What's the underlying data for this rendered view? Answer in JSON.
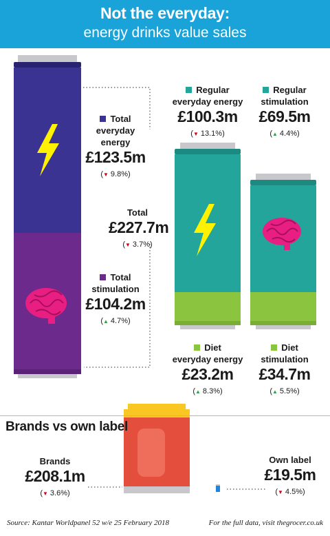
{
  "header": {
    "title": "Not the everyday:",
    "subtitle": "energy drinks value sales"
  },
  "colors": {
    "header_bg": "#1aa3d9",
    "everyday_can": "#3b3392",
    "stimulation_can": "#6b2a8c",
    "regular": "#23a59b",
    "diet": "#8bc53f",
    "brands_can": "#e34f3c",
    "down": "#d0021b",
    "up": "#2e9e4a"
  },
  "labels": {
    "total_everyday": {
      "name_line1": "Total everyday",
      "name_line2": "energy",
      "value": "£123.5m",
      "change": "9.8%",
      "dir": "down"
    },
    "total": {
      "name": "Total",
      "value": "£227.7m",
      "change": "3.7%",
      "dir": "down"
    },
    "total_stimulation": {
      "name_line1": "Total",
      "name_line2": "stimulation",
      "value": "£104.2m",
      "change": "4.7%",
      "dir": "up"
    },
    "regular_everyday": {
      "name_line1": "Regular",
      "name_line2": "everyday energy",
      "value": "£100.3m",
      "change": "13.1%",
      "dir": "down"
    },
    "regular_stimulation": {
      "name_line1": "Regular",
      "name_line2": "stimulation",
      "value": "£69.5m",
      "change": "4.4%",
      "dir": "up"
    },
    "diet_everyday": {
      "name_line1": "Diet",
      "name_line2": "everyday energy",
      "value": "£23.2m",
      "change": "8.3%",
      "dir": "up"
    },
    "diet_stimulation": {
      "name_line1": "Diet",
      "name_line2": "stimulation",
      "value": "£34.7m",
      "change": "5.5%",
      "dir": "up"
    },
    "brands": {
      "name": "Brands",
      "value": "£208.1m",
      "change": "3.6%",
      "dir": "down"
    },
    "own_label": {
      "name": "Own label",
      "value": "£19.5m",
      "change": "4.5%",
      "dir": "down"
    }
  },
  "brands_section_title": "Brands vs own label",
  "footer": {
    "source": "Source: Kantar Worldpanel 52 w/e 25 February 2018",
    "link": "For the full data, visit thegrocer.co.uk"
  },
  "chart_data": {
    "type": "bar",
    "title": "Not the everyday: energy drinks value sales",
    "unit": "£m",
    "total": {
      "value": 227.7,
      "change_pct": -3.7
    },
    "categories": [
      "Total everyday energy",
      "Total stimulation",
      "Regular everyday energy",
      "Diet everyday energy",
      "Regular stimulation",
      "Diet stimulation",
      "Brands",
      "Own label"
    ],
    "series": [
      {
        "values": [
          123.5,
          104.2,
          100.3,
          23.2,
          69.5,
          34.7,
          208.1,
          19.5
        ]
      }
    ],
    "change_pct": [
      -9.8,
      4.7,
      -13.1,
      8.3,
      4.4,
      5.5,
      -3.6,
      -4.5
    ]
  }
}
